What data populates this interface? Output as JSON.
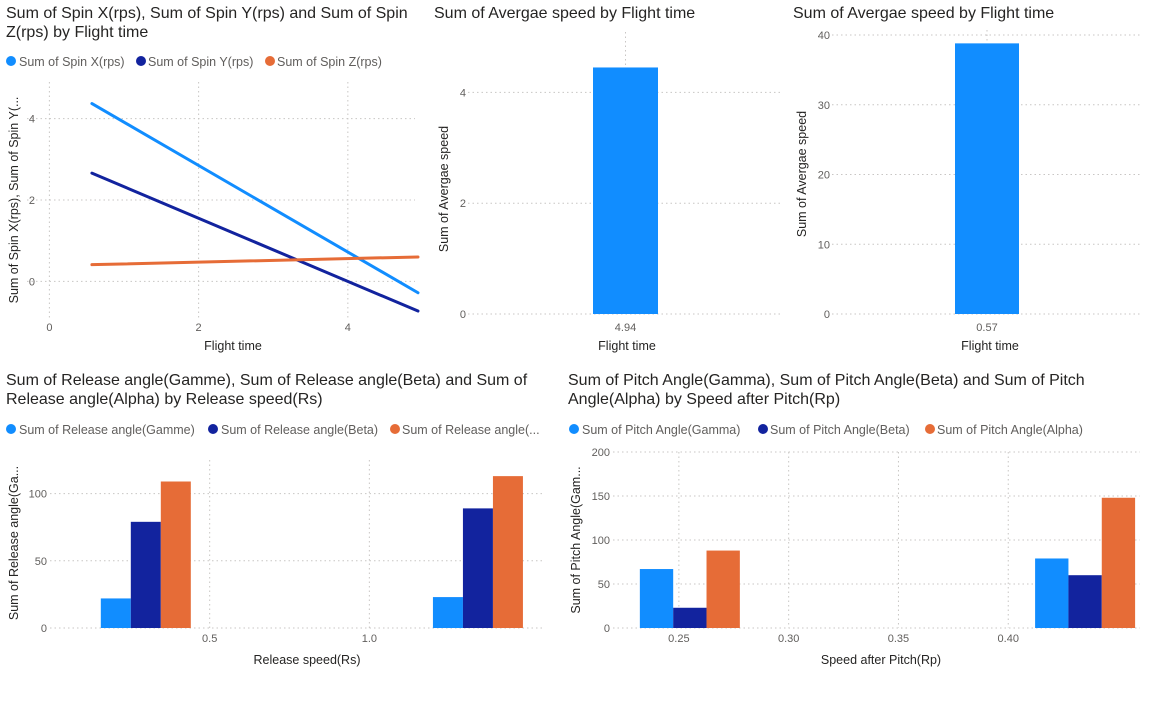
{
  "colors": {
    "c1": "#118dff",
    "c2": "#12239e",
    "c3": "#e66c37"
  },
  "chart_data": [
    {
      "type": "line",
      "title_line1": "Sum of Spin X(rps), Sum of Spin Y(rps) and Sum of Spin",
      "title_line2": "Z(rps) by Flight time",
      "xlabel": "Flight time",
      "ylabel": "Sum of Spin X(rps), Sum of Spin Y(...",
      "xlim": [
        -0.3,
        4.9
      ],
      "ylim": [
        -0.95,
        4.9
      ],
      "xticks": [
        0,
        2,
        4
      ],
      "yticks": [
        0,
        2,
        4
      ],
      "series": [
        {
          "name": "Sum of Spin X(rps)",
          "x": [
            0.57,
            4.94
          ],
          "y": [
            4.37,
            -0.28
          ]
        },
        {
          "name": "Sum of Spin Y(rps)",
          "x": [
            0.57,
            4.94
          ],
          "y": [
            2.66,
            -0.73
          ]
        },
        {
          "name": "Sum of Spin Z(rps)",
          "x": [
            0.57,
            4.94
          ],
          "y": [
            0.41,
            0.6
          ]
        }
      ]
    },
    {
      "type": "bar",
      "title": "Sum of Avergae speed by Flight time",
      "xlabel": "Flight time",
      "ylabel": "Sum of Avergae speed",
      "categories": [
        "4.94"
      ],
      "values": [
        4.45
      ],
      "ylim": [
        0,
        5.0
      ],
      "yticks": [
        0,
        2,
        4
      ]
    },
    {
      "type": "bar",
      "title": "Sum of Avergae speed by Flight time",
      "xlabel": "Flight time",
      "ylabel": "Sum of Avergae speed",
      "categories": [
        "0.57"
      ],
      "values": [
        38.8
      ],
      "ylim": [
        0,
        40
      ],
      "yticks": [
        0,
        10,
        20,
        30,
        40
      ]
    },
    {
      "type": "bar",
      "title_line1": "Sum of Release angle(Gamme), Sum of Release angle(Beta) and Sum of",
      "title_line2": "Release angle(Alpha) by Release speed(Rs)",
      "xlabel": "Release speed(Rs)",
      "ylabel": "Sum of Release angle(Ga...",
      "legend_labels": [
        "Sum of Release angle(Gamme)",
        "Sum of Release angle(Beta)",
        "Sum of Release angle(..."
      ],
      "x": [
        0.3,
        1.34
      ],
      "xlim": [
        0.0,
        1.55
      ],
      "xticks": [
        "0.5",
        "1.0"
      ],
      "xtick_values": [
        0.5,
        1.0
      ],
      "ylim": [
        0,
        125
      ],
      "yticks": [
        0,
        50,
        100
      ],
      "series": [
        {
          "name": "Sum of Release angle(Gamme)",
          "values": [
            22,
            23
          ]
        },
        {
          "name": "Sum of Release angle(Beta)",
          "values": [
            79,
            89
          ]
        },
        {
          "name": "Sum of Release angle(Alpha)",
          "values": [
            109,
            113
          ]
        }
      ]
    },
    {
      "type": "bar",
      "title_line1": "Sum of Pitch Angle(Gamma), Sum of Pitch Angle(Beta) and Sum of Pitch",
      "title_line2": "Angle(Alpha) by Speed after Pitch(Rp)",
      "xlabel": "Speed after Pitch(Rp)",
      "ylabel": "Sum of Pitch Angle(Gam...",
      "x": [
        0.255,
        0.435
      ],
      "xlim": [
        0.22,
        0.46
      ],
      "xticks": [
        "0.25",
        "0.30",
        "0.35",
        "0.40"
      ],
      "xtick_values": [
        0.25,
        0.3,
        0.35,
        0.4
      ],
      "ylim": [
        0,
        200
      ],
      "yticks": [
        0,
        50,
        100,
        150,
        200
      ],
      "series": [
        {
          "name": "Sum of Pitch Angle(Gamma)",
          "values": [
            67,
            79
          ]
        },
        {
          "name": "Sum of Pitch Angle(Beta)",
          "values": [
            23,
            60
          ]
        },
        {
          "name": "Sum of Pitch Angle(Alpha)",
          "values": [
            88,
            148
          ]
        }
      ]
    }
  ]
}
